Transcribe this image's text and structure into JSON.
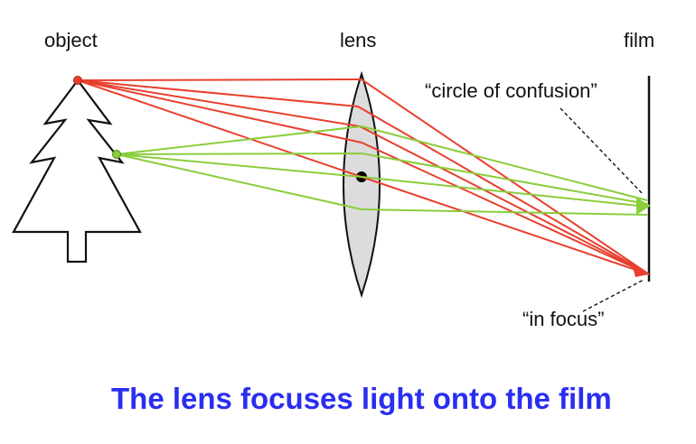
{
  "labels": {
    "object": "object",
    "lens": "lens",
    "film": "film",
    "circle_of_confusion": "“circle of confusion”",
    "in_focus": "“in focus”"
  },
  "caption": "The lens focuses light onto the film",
  "colors": {
    "red_ray": "#e8402e",
    "green_ray": "#8acd3b",
    "caption": "#2a2ef0",
    "lens_fill": "#dcdcdc",
    "outline": "#111111"
  },
  "icons": [
    "tree-icon",
    "lens-icon"
  ]
}
